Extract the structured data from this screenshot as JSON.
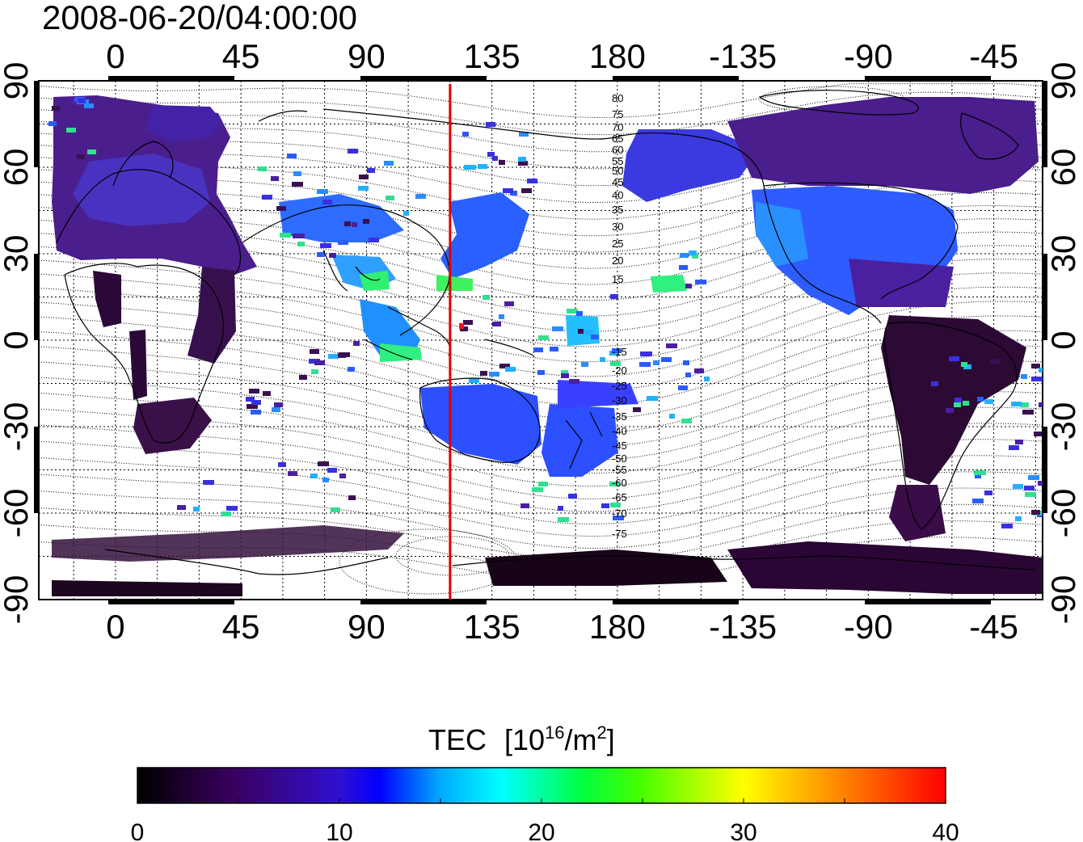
{
  "title": "2008-06-20/04:00:00",
  "top_lon_labels": [
    "0",
    "45",
    "90",
    "135",
    "180",
    "-135",
    "-90",
    "-45"
  ],
  "bottom_lon_labels": [
    "0",
    "45",
    "90",
    "135",
    "180",
    "-135",
    "-90",
    "-45"
  ],
  "left_lat_labels": [
    "90",
    "60",
    "30",
    "0",
    "-30",
    "-60",
    "-90"
  ],
  "right_lat_labels": [
    "90",
    "60",
    "30",
    "0",
    "-30",
    "-60",
    "-90"
  ],
  "magnetic_lat_labels_north": [
    "80",
    "75",
    "70",
    "65",
    "60",
    "55",
    "50",
    "45",
    "40",
    "35",
    "30",
    "25",
    "20",
    "15"
  ],
  "magnetic_lat_labels_south": [
    "-15",
    "-20",
    "-25",
    "-30",
    "-35",
    "-40",
    "-45",
    "-50",
    "-55",
    "-60",
    "-65",
    "-70",
    "-75"
  ],
  "meridian_marker": {
    "longitude": 120,
    "color": "#e00000"
  },
  "colorbar": {
    "title": "TEC",
    "unit_base": "[10",
    "unit_exp": "16",
    "unit_mid": "/m",
    "unit_exp2": "2",
    "unit_close": "]",
    "ticks": [
      "0",
      "10",
      "20",
      "30",
      "40"
    ],
    "colors": [
      "#000000",
      "#4a0090",
      "#0000ff",
      "#00ffff",
      "#00ff00",
      "#ffff00",
      "#ff9900",
      "#ff0000"
    ]
  },
  "map_colors": {
    "low": "#3a0a4a",
    "mid_low": "#5a20b0",
    "mid": "#3040ff",
    "mid_high": "#2aa0ff",
    "high": "#30ff40",
    "peak": "#ff1010"
  }
}
